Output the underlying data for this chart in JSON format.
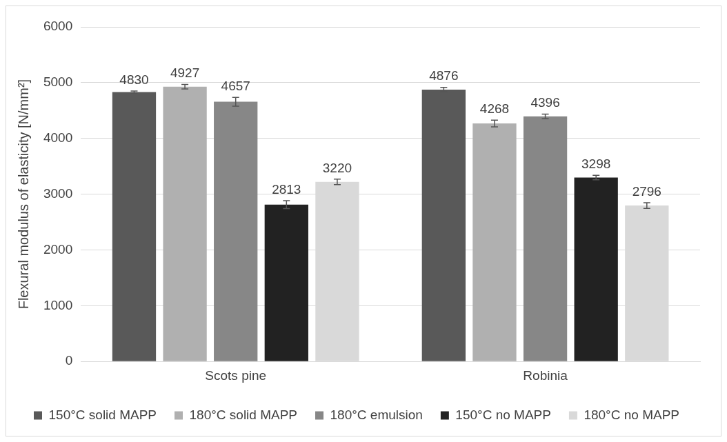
{
  "chart_data": {
    "type": "bar",
    "ylabel": "Flexural modulus of elasticity [N/mm²]",
    "categories": [
      "Scots pine",
      "Robinia"
    ],
    "series": [
      {
        "name": "150°C solid MAPP",
        "color": "#595959",
        "values": [
          4830,
          4876
        ],
        "errors": [
          20,
          40
        ]
      },
      {
        "name": "180°C solid MAPP",
        "color": "#b0b0b0",
        "values": [
          4927,
          4268
        ],
        "errors": [
          40,
          60
        ]
      },
      {
        "name": "180°C emulsion",
        "color": "#878787",
        "values": [
          4657,
          4396
        ],
        "errors": [
          80,
          40
        ]
      },
      {
        "name": "150°C no MAPP",
        "color": "#222222",
        "values": [
          2813,
          3298
        ],
        "errors": [
          70,
          40
        ]
      },
      {
        "name": "180°C no MAPP",
        "color": "#d9d9d9",
        "values": [
          3220,
          2796
        ],
        "errors": [
          50,
          50
        ]
      }
    ],
    "ylim": [
      0,
      6000
    ],
    "yticks": [
      0,
      1000,
      2000,
      3000,
      4000,
      5000,
      6000
    ],
    "grid": "y",
    "legend": "bottom",
    "data_labels": true
  }
}
